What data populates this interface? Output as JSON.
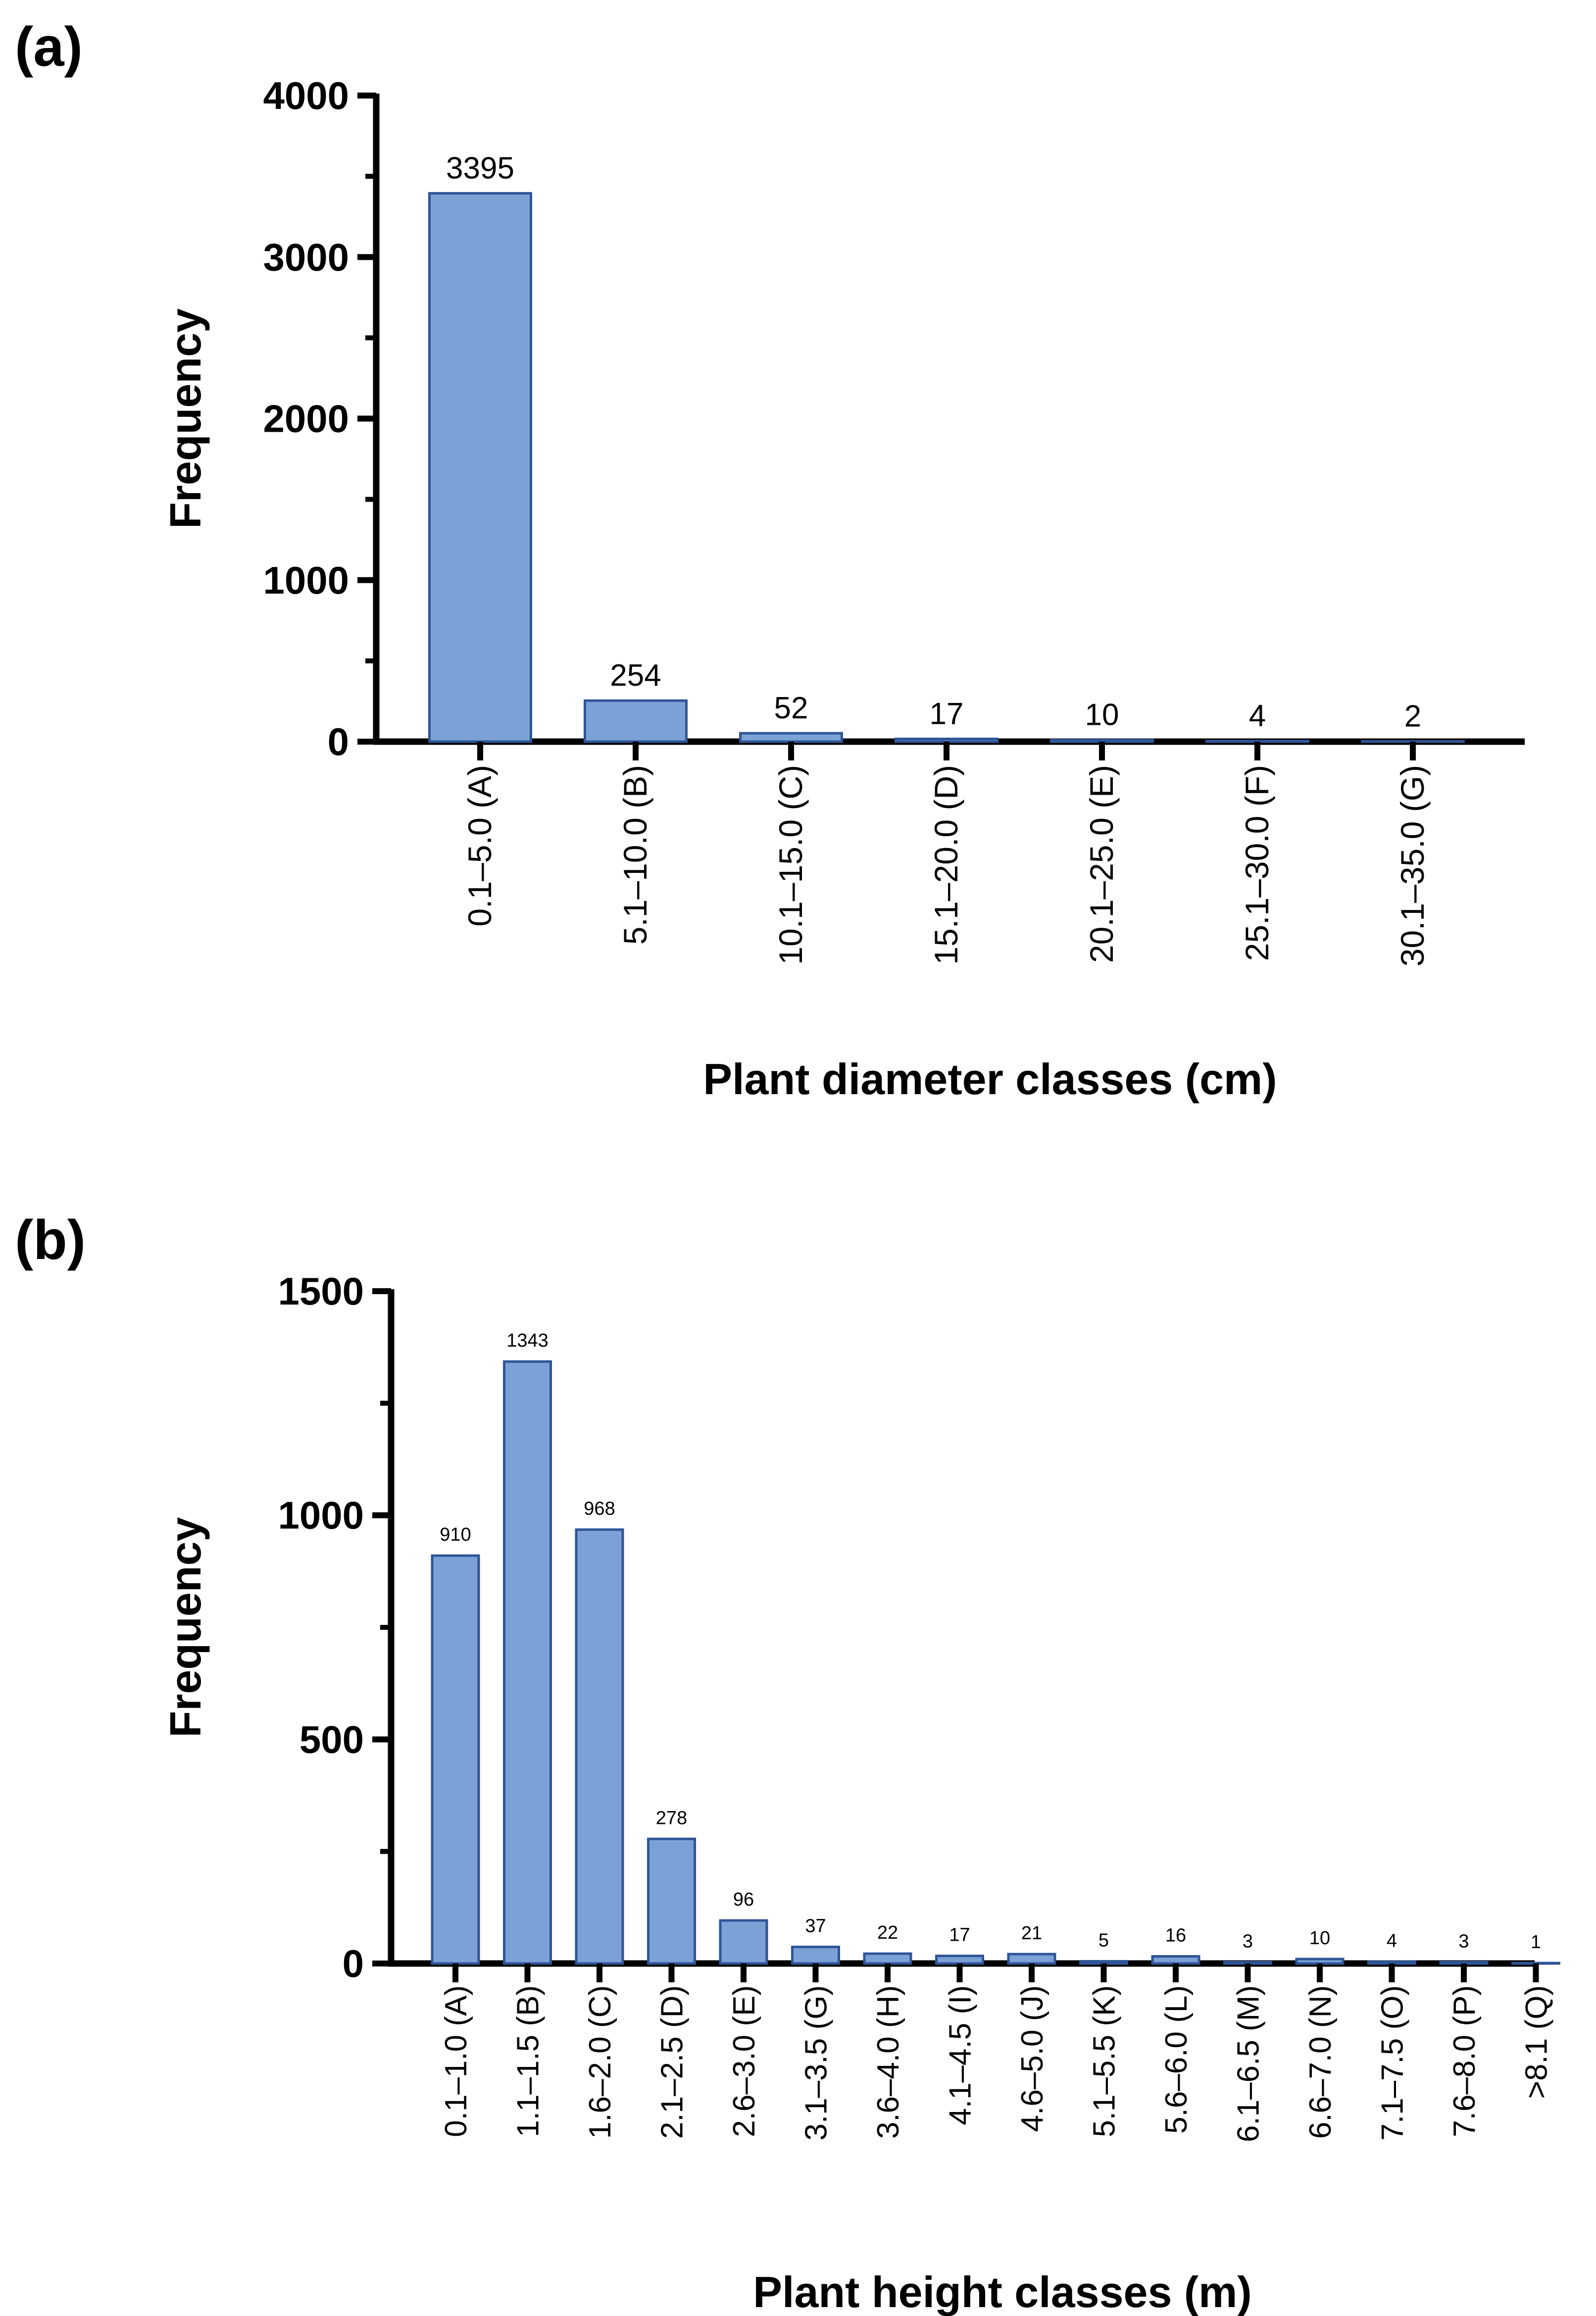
{
  "panels": {
    "a": {
      "label": "(a)"
    },
    "b": {
      "label": "(b)"
    }
  },
  "colors": {
    "bar_fill": "#7ba1d6",
    "bar_stroke": "#2f5597",
    "axis": "#000000"
  },
  "chart_data": [
    {
      "type": "bar",
      "xlabel": "Plant diameter classes (cm)",
      "ylabel": "Frequency",
      "ylim": [
        0,
        4000
      ],
      "yticks": [
        0,
        1000,
        2000,
        3000,
        4000
      ],
      "categories": [
        "0.1–5.0 (A)",
        "5.1–10.0 (B)",
        "10.1–15.0 (C)",
        "15.1–20.0 (D)",
        "20.1–25.0 (E)",
        "25.1–30.0 (F)",
        "30.1–35.0 (G)"
      ],
      "values": [
        3395,
        254,
        52,
        17,
        10,
        4,
        2
      ],
      "data_labels": [
        "3395",
        "254",
        "52",
        "17",
        "10",
        "4",
        "2"
      ]
    },
    {
      "type": "bar",
      "xlabel": "Plant height classes (m)",
      "ylabel": "Frequency",
      "ylim": [
        0,
        1500
      ],
      "yticks": [
        0,
        500,
        1000,
        1500
      ],
      "categories": [
        "0.1–1.0 (A)",
        "1.1–1.5 (B)",
        "1.6–2.0 (C)",
        "2.1–2.5 (D)",
        "2.6–3.0 (E)",
        "3.1–3.5 (G)",
        "3.6–4.0 (H)",
        "4.1–4.5 (I)",
        "4.6–5.0 (J)",
        "5.1–5.5 (K)",
        "5.6–6.0 (L)",
        "6.1–6.5 (M)",
        "6.6–7.0 (N)",
        "7.1–7.5 (O)",
        "7.6–8.0 (P)",
        ">8.1 (Q)"
      ],
      "values": [
        910,
        1343,
        968,
        278,
        96,
        37,
        22,
        17,
        21,
        5,
        16,
        3,
        10,
        4,
        3,
        1
      ],
      "data_labels": [
        "910",
        "1343",
        "968",
        "278",
        "96",
        "37",
        "22",
        "17",
        "21",
        "5",
        "16",
        "3",
        "10",
        "4",
        "3",
        "1"
      ]
    }
  ]
}
